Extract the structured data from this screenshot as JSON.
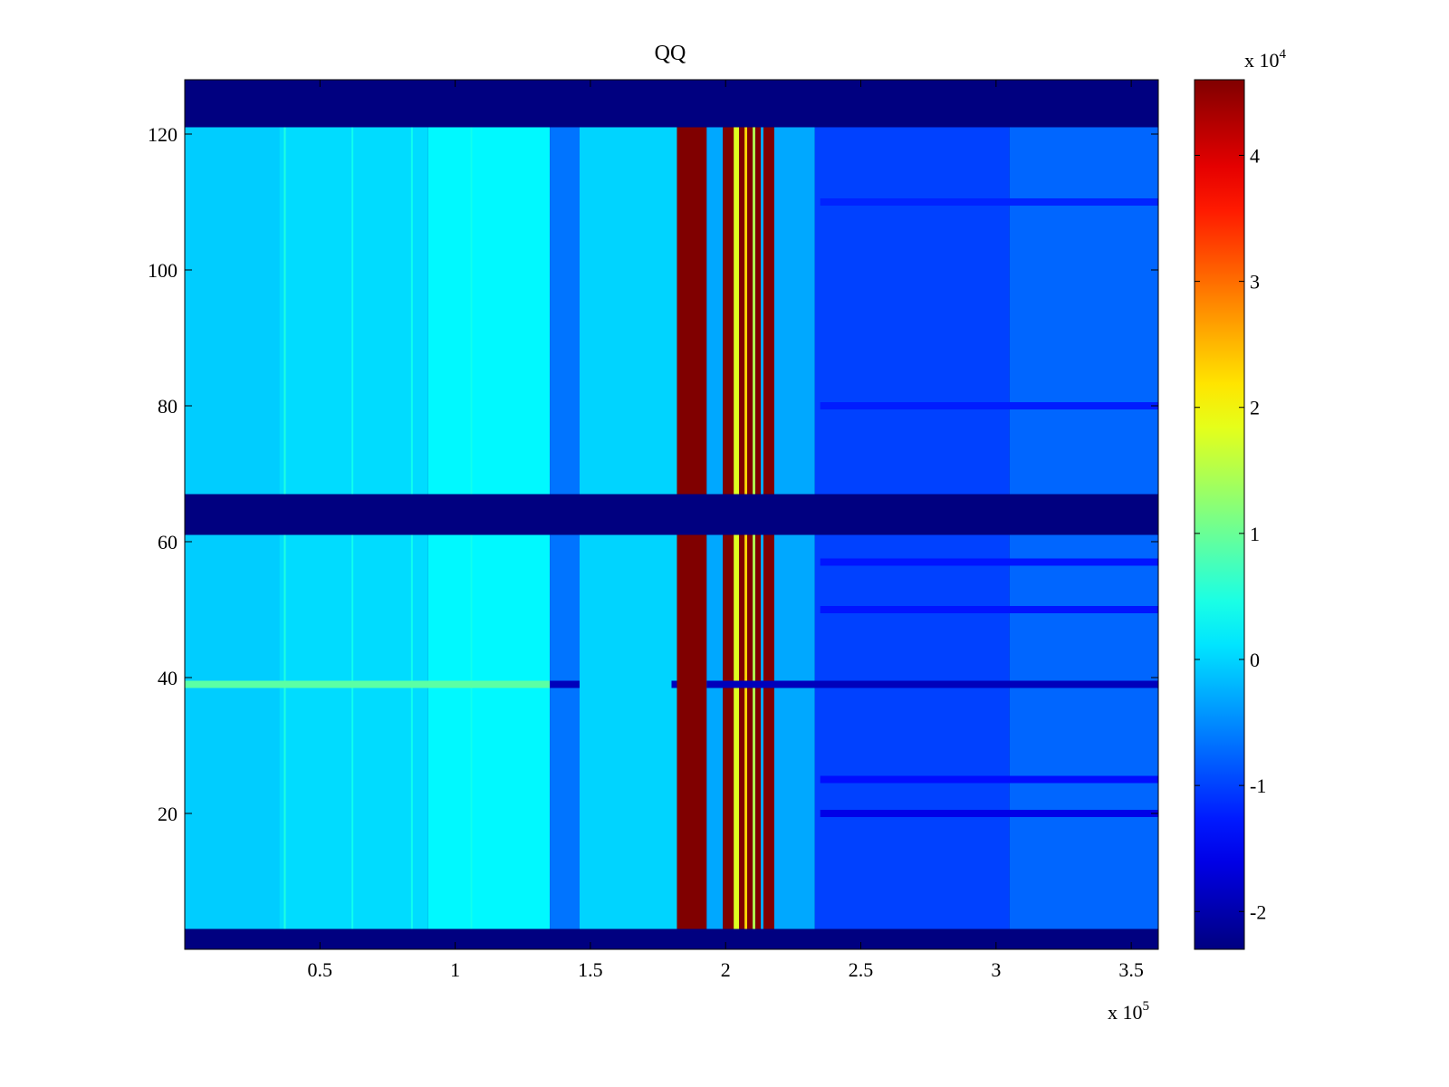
{
  "chart_data": {
    "type": "heatmap",
    "title": "QQ",
    "xlabel": "",
    "ylabel": "",
    "x_multiplier_label": "x 10",
    "x_multiplier_exponent": "5",
    "xlim": [
      0,
      3.6
    ],
    "ylim": [
      0,
      128
    ],
    "x_ticks": [
      0.5,
      1,
      1.5,
      2,
      2.5,
      3,
      3.5
    ],
    "x_tick_labels": [
      "0.5",
      "1",
      "1.5",
      "2",
      "2.5",
      "3",
      "3.5"
    ],
    "y_ticks": [
      20,
      40,
      60,
      80,
      100,
      120
    ],
    "y_tick_labels": [
      "20",
      "40",
      "60",
      "80",
      "100",
      "120"
    ],
    "colormap": "jet",
    "clim": [
      -2.3,
      4.6
    ],
    "colorbar": {
      "multiplier_label": "x 10",
      "multiplier_exponent": "4",
      "ticks": [
        -2,
        -1,
        0,
        1,
        2,
        3,
        4
      ],
      "tick_labels": [
        "-2",
        "-1",
        "0",
        "1",
        "2",
        "3",
        "4"
      ]
    },
    "background_value": -2.3,
    "row_bands": [
      {
        "y0": 3,
        "y1": 61,
        "name": "lower"
      },
      {
        "y0": 67,
        "y1": 121,
        "name": "upper"
      }
    ],
    "column_segments": [
      {
        "x0": 0.0,
        "x1": 0.35,
        "value": -0.05
      },
      {
        "x0": 0.35,
        "x1": 0.9,
        "value": 0.05
      },
      {
        "x0": 0.9,
        "x1": 1.35,
        "value": 0.25
      },
      {
        "x0": 1.35,
        "x1": 1.46,
        "value": -0.65
      },
      {
        "x0": 1.46,
        "x1": 1.82,
        "value": 0.0
      },
      {
        "x0": 1.82,
        "x1": 1.93,
        "value": 4.6
      },
      {
        "x0": 1.93,
        "x1": 1.99,
        "value": -0.3
      },
      {
        "x0": 1.99,
        "x1": 2.03,
        "value": 4.6
      },
      {
        "x0": 2.03,
        "x1": 2.05,
        "value": 1.8
      },
      {
        "x0": 2.05,
        "x1": 2.07,
        "value": 4.6
      },
      {
        "x0": 2.07,
        "x1": 2.08,
        "value": 2.3
      },
      {
        "x0": 2.08,
        "x1": 2.1,
        "value": 4.6
      },
      {
        "x0": 2.1,
        "x1": 2.11,
        "value": 1.5
      },
      {
        "x0": 2.11,
        "x1": 2.13,
        "value": 4.6
      },
      {
        "x0": 2.13,
        "x1": 2.14,
        "value": -0.3
      },
      {
        "x0": 2.14,
        "x1": 2.18,
        "value": 4.6
      },
      {
        "x0": 2.18,
        "x1": 2.33,
        "value": -0.3
      },
      {
        "x0": 2.33,
        "x1": 3.05,
        "value": -1.0
      },
      {
        "x0": 3.05,
        "x1": 3.6,
        "value": -0.75
      }
    ],
    "row_streaks": [
      {
        "y": 39,
        "x0": 0.0,
        "x1": 1.35,
        "value": 0.9
      },
      {
        "y": 39,
        "x0": 1.35,
        "x1": 1.46,
        "value": -1.9
      },
      {
        "y": 39,
        "x0": 1.8,
        "x1": 1.82,
        "value": -1.9
      },
      {
        "y": 39,
        "x0": 1.93,
        "x1": 3.6,
        "value": -1.9
      },
      {
        "y": 20,
        "x0": 2.35,
        "x1": 3.6,
        "value": -1.6
      },
      {
        "y": 25,
        "x0": 2.35,
        "x1": 3.6,
        "value": -1.35
      },
      {
        "y": 50,
        "x0": 2.35,
        "x1": 3.6,
        "value": -1.3
      },
      {
        "y": 57,
        "x0": 2.35,
        "x1": 3.6,
        "value": -1.3
      },
      {
        "y": 80,
        "x0": 2.35,
        "x1": 3.6,
        "value": -1.25
      },
      {
        "y": 110,
        "x0": 2.35,
        "x1": 3.6,
        "value": -1.2
      }
    ],
    "column_lines": [
      {
        "x": 0.37,
        "value": 0.5
      },
      {
        "x": 0.62,
        "value": 0.4
      },
      {
        "x": 0.84,
        "value": 0.4
      },
      {
        "x": 1.06,
        "value": 0.4
      }
    ]
  }
}
